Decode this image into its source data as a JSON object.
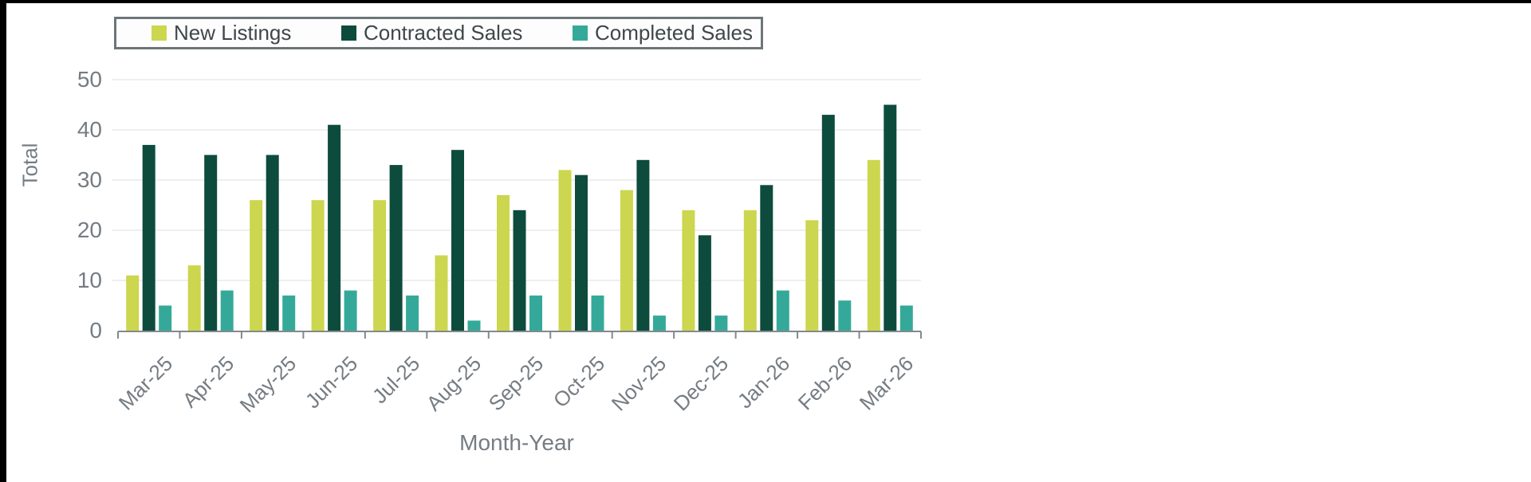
{
  "page": {
    "background_color": "#ffffff",
    "top_edge_color": "#000000",
    "left_edge_color": "#000000"
  },
  "chart_data": {
    "type": "bar",
    "title": "",
    "xlabel": "Month-Year",
    "ylabel": "Total",
    "categories": [
      "Mar-25",
      "Apr-25",
      "May-25",
      "Jun-25",
      "Jul-25",
      "Aug-25",
      "Sep-25",
      "Oct-25",
      "Nov-25",
      "Dec-25",
      "Jan-26",
      "Feb-26",
      "Mar-26"
    ],
    "series": [
      {
        "name": "New Listings",
        "color": "#ccd64e",
        "values": [
          11,
          13,
          26,
          26,
          26,
          15,
          27,
          32,
          28,
          24,
          24,
          22,
          34
        ]
      },
      {
        "name": "Contracted Sales",
        "color": "#0d4b3d",
        "values": [
          37,
          35,
          35,
          41,
          33,
          36,
          24,
          31,
          34,
          19,
          29,
          43,
          45
        ]
      },
      {
        "name": "Completed Sales",
        "color": "#35a999",
        "values": [
          5,
          8,
          7,
          8,
          7,
          2,
          7,
          7,
          3,
          3,
          8,
          6,
          5
        ]
      }
    ],
    "ylim": [
      0,
      50
    ],
    "yticks": [
      0,
      10,
      20,
      30,
      40,
      50
    ],
    "grid": true,
    "legend_position": "top",
    "colors": {
      "gridline": "#e8eaec",
      "axis_line": "#82898d",
      "tick_text": "#757c82",
      "legend_text": "#3f474a",
      "legend_border": "#6d7578"
    }
  }
}
